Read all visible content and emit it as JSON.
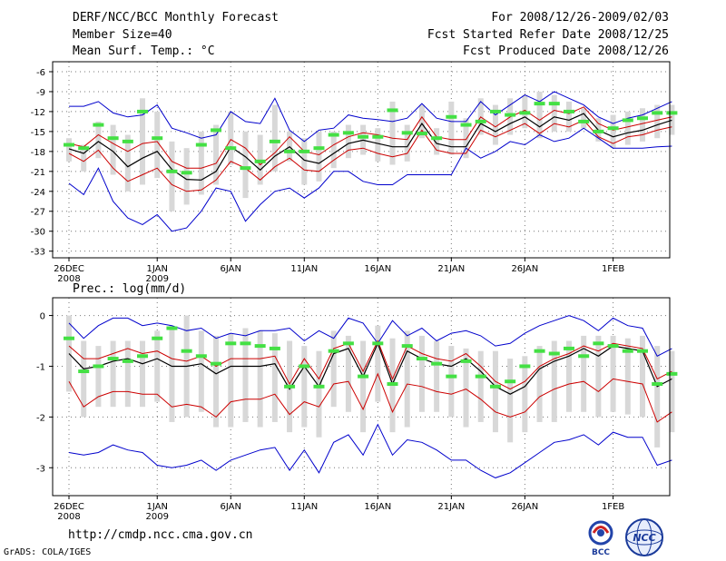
{
  "header": {
    "title": "DERF/NCC/BCC Monthly Forecast",
    "member_size": "Member Size=40",
    "variable": "Mean Surf. Temp.: °C",
    "period": "For 2008/12/26-2009/02/03",
    "refer_date": "Fcst Started Refer Date 2008/12/25",
    "produced_date": "Fcst Produced Date 2008/12/26"
  },
  "panel2_label": "Prec.: log(mm/d)",
  "footer": {
    "url": "http://cmdp.ncc.cma.gov.cn",
    "credit": "GrADS: COLA/IGES"
  },
  "logos": {
    "bcc": "BCC",
    "ncc": "NCC"
  },
  "colors": {
    "max_min": "#0000cc",
    "spread": "#cc0000",
    "mean": "#000000",
    "box": "#d8d8d8",
    "marker": "#44e044"
  },
  "chart_data": [
    {
      "type": "line",
      "name": "temperature",
      "ylabel": "Mean Surf. Temp.: °C",
      "ylim": [
        -34,
        -4.5
      ],
      "yticks": [
        -6,
        -9,
        -12,
        -15,
        -18,
        -21,
        -24,
        -27,
        -30,
        -33
      ],
      "xticks": [
        {
          "day": 0,
          "label": "26DEC",
          "sub": "2008"
        },
        {
          "day": 6,
          "label": "1JAN",
          "sub": "2009"
        },
        {
          "day": 11,
          "label": "6JAN",
          "sub": ""
        },
        {
          "day": 16,
          "label": "11JAN",
          "sub": ""
        },
        {
          "day": 21,
          "label": "16JAN",
          "sub": ""
        },
        {
          "day": 26,
          "label": "21JAN",
          "sub": ""
        },
        {
          "day": 31,
          "label": "26JAN",
          "sub": ""
        },
        {
          "day": 37,
          "label": "1FEB",
          "sub": ""
        }
      ],
      "days": 39,
      "series": [
        {
          "name": "max",
          "values": [
            -11.2,
            -11.2,
            -10.5,
            -12.2,
            -12.8,
            -12.5,
            -11.0,
            -14.5,
            -15.2,
            -16.0,
            -15.5,
            -12.0,
            -13.5,
            -13.8,
            -10.0,
            -14.8,
            -16.5,
            -14.8,
            -14.5,
            -12.5,
            -13.0,
            -13.2,
            -13.5,
            -13.0,
            -10.8,
            -13.0,
            -13.5,
            -13.5,
            -10.5,
            -12.5,
            -11.0,
            -9.5,
            -10.5,
            -9.0,
            -10.0,
            -11.0,
            -12.8,
            -13.8,
            -13.0,
            -12.5,
            -11.5,
            -10.5
          ]
        },
        {
          "name": "upper",
          "values": [
            -16.8,
            -17.3,
            -15.5,
            -16.8,
            -18.0,
            -16.8,
            -16.5,
            -19.5,
            -20.5,
            -20.5,
            -19.8,
            -16.2,
            -17.5,
            -20.0,
            -18.2,
            -15.8,
            -18.0,
            -18.5,
            -17.0,
            -15.8,
            -15.2,
            -15.5,
            -16.0,
            -16.2,
            -12.8,
            -15.8,
            -16.2,
            -16.2,
            -12.8,
            -14.3,
            -12.8,
            -11.8,
            -13.3,
            -11.8,
            -12.3,
            -11.3,
            -13.8,
            -14.8,
            -14.3,
            -13.8,
            -13.3,
            -12.8
          ]
        },
        {
          "name": "mean",
          "values": [
            -17.6,
            -18.3,
            -16.5,
            -18.0,
            -20.3,
            -19.0,
            -18.0,
            -20.7,
            -22.2,
            -22.3,
            -21.0,
            -17.3,
            -18.8,
            -20.8,
            -18.7,
            -17.3,
            -19.3,
            -19.8,
            -18.3,
            -16.8,
            -16.3,
            -16.8,
            -17.3,
            -17.3,
            -13.8,
            -16.8,
            -17.3,
            -17.3,
            -13.8,
            -15.0,
            -13.8,
            -12.8,
            -14.3,
            -12.8,
            -13.3,
            -12.3,
            -14.8,
            -15.8,
            -15.2,
            -14.8,
            -14.0,
            -13.3
          ]
        },
        {
          "name": "lower",
          "values": [
            -18.3,
            -19.5,
            -17.8,
            -20.5,
            -22.5,
            -21.5,
            -20.5,
            -23.0,
            -24.0,
            -23.8,
            -22.3,
            -19.5,
            -20.5,
            -22.3,
            -20.3,
            -19.0,
            -20.8,
            -21.0,
            -19.3,
            -17.8,
            -17.5,
            -18.3,
            -18.8,
            -18.3,
            -14.8,
            -17.8,
            -18.3,
            -18.3,
            -14.8,
            -15.8,
            -14.8,
            -13.8,
            -15.3,
            -13.8,
            -14.3,
            -13.3,
            -15.8,
            -16.8,
            -15.8,
            -15.5,
            -14.8,
            -14.3
          ]
        },
        {
          "name": "min",
          "values": [
            -22.8,
            -24.5,
            -20.5,
            -25.5,
            -28.0,
            -29.0,
            -27.5,
            -30.0,
            -29.5,
            -27.0,
            -23.5,
            -24.0,
            -28.5,
            -26.0,
            -24.0,
            -23.5,
            -25.0,
            -23.5,
            -21.0,
            -21.0,
            -22.5,
            -23.0,
            -23.0,
            -21.5,
            -21.5,
            -21.5,
            -21.5,
            -17.5,
            -19.0,
            -18.0,
            -16.5,
            -17.0,
            -15.5,
            -16.5,
            -16.0,
            -14.5,
            -16.0,
            -17.5,
            -17.5,
            -17.5,
            -17.3,
            -17.2
          ]
        },
        {
          "name": "markers",
          "values": [
            -17.0,
            -17.5,
            -14.0,
            -16.0,
            -16.5,
            -12.0,
            -16.0,
            -21.0,
            -21.2,
            -17.0,
            -14.8,
            -17.5,
            -20.5,
            -19.5,
            -16.5,
            -18.0,
            -18.0,
            -17.5,
            -15.5,
            -15.2,
            -15.8,
            -15.8,
            -11.8,
            -15.2,
            -15.3,
            -16.0,
            -12.8,
            -14.0,
            -13.5,
            -12.0,
            -12.5,
            -12.2,
            -10.8,
            -10.8,
            -12.0,
            -13.5,
            -15.0,
            -14.5,
            -13.3,
            -13.0,
            -12.2,
            -12.2
          ]
        },
        {
          "name": "box_top",
          "values": [
            -16.0,
            -17.0,
            -13.5,
            -14.0,
            -15.5,
            -10.0,
            -12.0,
            -16.5,
            -17.5,
            -15.0,
            -14.0,
            -12.0,
            -15.0,
            -15.5,
            -11.0,
            -15.0,
            -16.0,
            -15.0,
            -15.0,
            -14.0,
            -14.0,
            -14.5,
            -10.5,
            -14.0,
            -11.0,
            -14.5,
            -10.5,
            -13.0,
            -10.0,
            -11.0,
            -10.0,
            -9.5,
            -9.0,
            -9.5,
            -10.5,
            -11.5,
            -13.0,
            -12.5,
            -12.0,
            -11.5,
            -11.0,
            -11.0
          ]
        },
        {
          "name": "box_bottom",
          "values": [
            -19.5,
            -21.0,
            -19.0,
            -21.5,
            -24.0,
            -23.0,
            -22.0,
            -27.0,
            -26.0,
            -24.5,
            -23.0,
            -20.0,
            -25.0,
            -23.0,
            -21.0,
            -19.5,
            -23.0,
            -22.5,
            -20.5,
            -19.0,
            -18.5,
            -19.5,
            -20.0,
            -19.5,
            -16.0,
            -18.5,
            -18.5,
            -19.0,
            -15.5,
            -17.0,
            -15.5,
            -14.5,
            -16.0,
            -15.0,
            -15.0,
            -14.5,
            -16.5,
            -17.5,
            -17.0,
            -16.5,
            -16.0,
            -15.5
          ]
        }
      ]
    },
    {
      "type": "line",
      "name": "precipitation",
      "ylabel": "Prec.: log(mm/d)",
      "ylim": [
        -3.55,
        0.35
      ],
      "yticks": [
        0,
        -1,
        -2,
        -3
      ],
      "xticks": [
        {
          "day": 0,
          "label": "26DEC",
          "sub": "2008"
        },
        {
          "day": 6,
          "label": "1JAN",
          "sub": "2009"
        },
        {
          "day": 11,
          "label": "6JAN",
          "sub": ""
        },
        {
          "day": 16,
          "label": "11JAN",
          "sub": ""
        },
        {
          "day": 21,
          "label": "16JAN",
          "sub": ""
        },
        {
          "day": 26,
          "label": "21JAN",
          "sub": ""
        },
        {
          "day": 31,
          "label": "26JAN",
          "sub": ""
        },
        {
          "day": 37,
          "label": "1FEB",
          "sub": ""
        }
      ],
      "days": 39,
      "series": [
        {
          "name": "max",
          "values": [
            -0.15,
            -0.45,
            -0.2,
            -0.05,
            -0.05,
            -0.2,
            -0.15,
            -0.2,
            -0.3,
            -0.25,
            -0.45,
            -0.35,
            -0.4,
            -0.3,
            -0.3,
            -0.25,
            -0.5,
            -0.3,
            -0.45,
            -0.05,
            -0.15,
            -0.55,
            -0.1,
            -0.4,
            -0.25,
            -0.5,
            -0.35,
            -0.3,
            -0.4,
            -0.6,
            -0.55,
            -0.35,
            -0.2,
            -0.1,
            0.0,
            -0.1,
            -0.3,
            -0.05,
            -0.2,
            -0.25,
            -0.8,
            -0.65
          ]
        },
        {
          "name": "upper",
          "values": [
            -0.6,
            -0.85,
            -0.85,
            -0.75,
            -0.65,
            -0.75,
            -0.7,
            -0.85,
            -0.9,
            -0.8,
            -1.0,
            -0.85,
            -0.85,
            -0.85,
            -0.8,
            -1.35,
            -0.85,
            -1.25,
            -0.65,
            -0.55,
            -1.1,
            -0.5,
            -1.25,
            -0.6,
            -0.75,
            -0.85,
            -0.9,
            -0.75,
            -1.0,
            -1.3,
            -1.45,
            -1.3,
            -1.0,
            -0.85,
            -0.75,
            -0.6,
            -0.7,
            -0.55,
            -0.6,
            -0.65,
            -1.25,
            -1.1
          ]
        },
        {
          "name": "mean",
          "values": [
            -0.75,
            -1.05,
            -1.0,
            -0.9,
            -0.85,
            -0.95,
            -0.85,
            -1.0,
            -1.0,
            -0.95,
            -1.15,
            -1.0,
            -1.0,
            -1.0,
            -0.95,
            -1.45,
            -1.0,
            -1.4,
            -0.75,
            -0.65,
            -1.2,
            -0.55,
            -1.35,
            -0.7,
            -0.85,
            -0.95,
            -1.0,
            -0.85,
            -1.1,
            -1.4,
            -1.55,
            -1.4,
            -1.05,
            -0.9,
            -0.8,
            -0.65,
            -0.8,
            -0.6,
            -0.65,
            -0.7,
            -1.4,
            -1.25
          ]
        },
        {
          "name": "lower",
          "values": [
            -1.3,
            -1.8,
            -1.6,
            -1.5,
            -1.5,
            -1.55,
            -1.55,
            -1.8,
            -1.75,
            -1.8,
            -2.0,
            -1.7,
            -1.65,
            -1.65,
            -1.55,
            -1.95,
            -1.7,
            -1.8,
            -1.35,
            -1.3,
            -1.85,
            -1.15,
            -1.9,
            -1.35,
            -1.4,
            -1.5,
            -1.55,
            -1.45,
            -1.65,
            -1.9,
            -2.0,
            -1.9,
            -1.6,
            -1.45,
            -1.35,
            -1.3,
            -1.5,
            -1.25,
            -1.3,
            -1.35,
            -2.1,
            -1.9
          ]
        },
        {
          "name": "min",
          "values": [
            -2.7,
            -2.75,
            -2.7,
            -2.55,
            -2.65,
            -2.7,
            -2.95,
            -3.0,
            -2.95,
            -2.85,
            -3.05,
            -2.85,
            -2.75,
            -2.65,
            -2.6,
            -3.05,
            -2.65,
            -3.1,
            -2.5,
            -2.35,
            -2.75,
            -2.15,
            -2.75,
            -2.45,
            -2.5,
            -2.65,
            -2.85,
            -2.85,
            -3.05,
            -3.2,
            -3.1,
            -2.9,
            -2.7,
            -2.5,
            -2.45,
            -2.35,
            -2.55,
            -2.3,
            -2.4,
            -2.4,
            -2.95,
            -2.85
          ]
        },
        {
          "name": "markers",
          "values": [
            -0.45,
            -1.1,
            -1.0,
            -0.85,
            -0.9,
            -0.8,
            -0.45,
            -0.25,
            -0.7,
            -0.8,
            -0.95,
            -0.55,
            -0.55,
            -0.6,
            -0.65,
            -1.4,
            -1.0,
            -1.4,
            -0.7,
            -0.55,
            -1.2,
            -0.55,
            -1.35,
            -0.6,
            -0.85,
            -0.95,
            -1.2,
            -0.9,
            -1.2,
            -1.4,
            -1.3,
            -1.0,
            -0.7,
            -0.75,
            -0.65,
            -0.8,
            -0.55,
            -0.6,
            -0.7,
            -0.7,
            -1.35,
            -1.15
          ]
        },
        {
          "name": "box_top",
          "values": [
            0.0,
            -0.5,
            -0.6,
            -0.5,
            -0.5,
            -0.5,
            -0.3,
            -0.2,
            0.0,
            -0.3,
            -0.4,
            -0.35,
            -0.25,
            -0.3,
            -0.35,
            -0.5,
            -0.6,
            -0.7,
            -0.3,
            -0.4,
            -0.5,
            -0.2,
            -0.45,
            -0.3,
            -0.4,
            -0.5,
            -0.6,
            -0.65,
            -0.7,
            -0.7,
            -0.85,
            -0.8,
            -0.6,
            -0.5,
            -0.5,
            -0.4,
            -0.4,
            -0.4,
            -0.45,
            -0.4,
            -0.6,
            -0.7
          ]
        },
        {
          "name": "box_bottom",
          "values": [
            -1.5,
            -2.0,
            -1.8,
            -1.8,
            -1.8,
            -1.8,
            -1.7,
            -2.1,
            -2.0,
            -1.9,
            -2.2,
            -2.2,
            -2.1,
            -2.2,
            -2.1,
            -2.3,
            -2.2,
            -2.4,
            -1.8,
            -1.9,
            -2.3,
            -1.7,
            -2.3,
            -2.2,
            -1.9,
            -1.9,
            -2.0,
            -2.2,
            -2.1,
            -2.3,
            -2.5,
            -2.3,
            -2.1,
            -2.1,
            -1.9,
            -1.9,
            -2.0,
            -1.9,
            -1.95,
            -2.0,
            -2.6,
            -2.3
          ]
        }
      ]
    }
  ]
}
